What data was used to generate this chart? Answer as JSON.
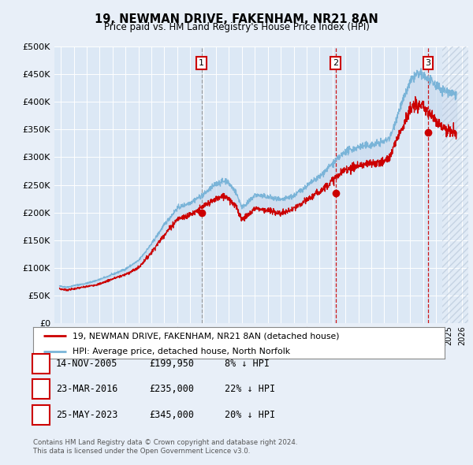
{
  "title": "19, NEWMAN DRIVE, FAKENHAM, NR21 8AN",
  "subtitle": "Price paid vs. HM Land Registry's House Price Index (HPI)",
  "legend_line1": "19, NEWMAN DRIVE, FAKENHAM, NR21 8AN (detached house)",
  "legend_line2": "HPI: Average price, detached house, North Norfolk",
  "footer1": "Contains HM Land Registry data © Crown copyright and database right 2024.",
  "footer2": "This data is licensed under the Open Government Licence v3.0.",
  "transactions": [
    {
      "num": 1,
      "date": "14-NOV-2005",
      "price": "£199,950",
      "pct": "8% ↓ HPI",
      "year": 2005.87
    },
    {
      "num": 2,
      "date": "23-MAR-2016",
      "price": "£235,000",
      "pct": "22% ↓ HPI",
      "year": 2016.23
    },
    {
      "num": 3,
      "date": "25-MAY-2023",
      "price": "£345,000",
      "pct": "20% ↓ HPI",
      "year": 2023.4
    }
  ],
  "transaction_prices": [
    199950,
    235000,
    345000
  ],
  "hpi_color": "#7ab4d8",
  "price_color": "#cc0000",
  "bg_color": "#e8eff8",
  "plot_bg": "#dce8f5",
  "fill_color": "#c5d8ee",
  "grid_color": "#ffffff",
  "ylim": [
    0,
    500000
  ],
  "yticks": [
    0,
    50000,
    100000,
    150000,
    200000,
    250000,
    300000,
    350000,
    400000,
    450000,
    500000
  ],
  "xmin": 1994.5,
  "xmax": 2026.5,
  "hatch_start": 2024.5
}
